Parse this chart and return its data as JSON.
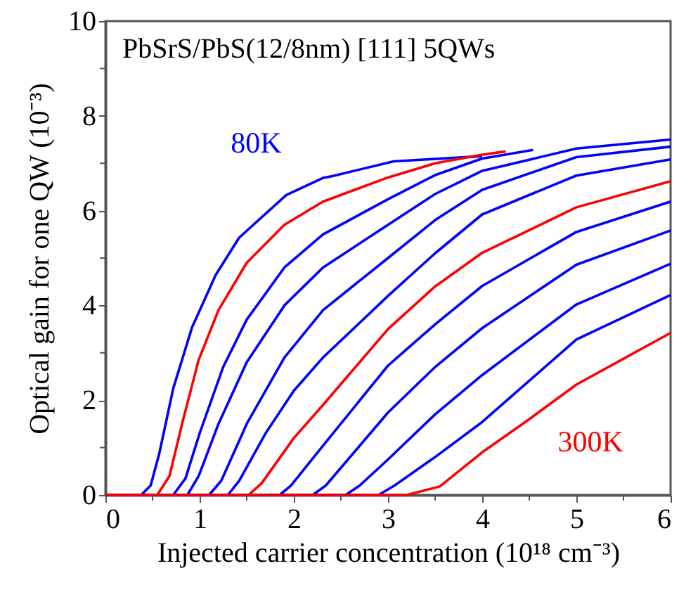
{
  "chart_data": {
    "type": "line",
    "title": "PbSrS/PbS(12/8nm) [111] 5QWs",
    "xlabel": "Injected carrier concentration (10¹⁸ cm⁻³)",
    "ylabel": "Optical gain for one QW (10⁻³)",
    "xlim": [
      0,
      6
    ],
    "ylim": [
      0,
      10
    ],
    "xticks": [
      0,
      {
        "value": 0.5,
        "label": null
      },
      1,
      {
        "value": 1.5,
        "label": null
      },
      2,
      {
        "value": 2.5,
        "label": null
      },
      3,
      {
        "value": 3.5,
        "label": null
      },
      4,
      {
        "value": 4.5,
        "label": null
      },
      5,
      {
        "value": 5.5,
        "label": null
      },
      6
    ],
    "yticks": [
      0,
      {
        "value": 1,
        "label": null
      },
      2,
      {
        "value": 3,
        "label": null
      },
      4,
      {
        "value": 5,
        "label": null
      },
      6,
      {
        "value": 7,
        "label": null
      },
      8,
      {
        "value": 9,
        "label": null
      },
      10
    ],
    "grid": false,
    "legend": false,
    "line_style": "solid",
    "series": [
      {
        "name": "80K",
        "color": "#0000ff",
        "x": [
          0,
          0.38,
          0.48,
          0.57,
          0.72,
          0.92,
          1.17,
          1.42,
          1.92,
          2.31,
          2.41,
          3.06,
          4.0
        ],
        "values": [
          0,
          0,
          0.2,
          0.86,
          2.25,
          3.54,
          4.64,
          5.43,
          6.33,
          6.69,
          6.73,
          7.04,
          7.15
        ]
      },
      {
        "color": "#ff0000",
        "x": [
          0,
          0.55,
          0.68,
          0.82,
          0.99,
          1.2,
          1.5,
          1.9,
          2.31,
          3.0,
          3.5,
          4.0,
          4.25
        ],
        "values": [
          0,
          0,
          0.4,
          1.55,
          2.85,
          3.9,
          4.9,
          5.7,
          6.19,
          6.7,
          7.0,
          7.18,
          7.25
        ]
      },
      {
        "color": "#0000ff",
        "x": [
          0,
          0.72,
          0.85,
          1.0,
          1.25,
          1.5,
          1.9,
          2.31,
          3.0,
          3.5,
          4.0,
          4.54
        ],
        "values": [
          0,
          0,
          0.35,
          1.3,
          2.7,
          3.7,
          4.8,
          5.5,
          6.24,
          6.75,
          7.1,
          7.28
        ]
      },
      {
        "color": "#0000ff",
        "x": [
          0,
          0.87,
          0.99,
          1.2,
          1.5,
          1.9,
          2.31,
          3.0,
          3.5,
          4.0,
          5.0,
          6.0
        ],
        "values": [
          0,
          0,
          0.4,
          1.5,
          2.8,
          4.0,
          4.8,
          5.7,
          6.35,
          6.84,
          7.31,
          7.5
        ]
      },
      {
        "color": "#0000ff",
        "x": [
          0,
          1.1,
          1.23,
          1.5,
          1.9,
          2.31,
          3.0,
          3.5,
          4.0,
          5.0,
          6.0
        ],
        "values": [
          0,
          0,
          0.3,
          1.5,
          2.9,
          3.9,
          5.0,
          5.8,
          6.44,
          7.13,
          7.35
        ]
      },
      {
        "color": "#0000ff",
        "x": [
          0,
          1.3,
          1.42,
          1.7,
          2.0,
          2.31,
          3.0,
          3.5,
          4.0,
          5.0,
          6.0
        ],
        "values": [
          0,
          0,
          0.3,
          1.3,
          2.2,
          2.9,
          4.2,
          5.1,
          5.92,
          6.74,
          7.08
        ]
      },
      {
        "color": "#ff0000",
        "x": [
          0,
          1.52,
          1.66,
          2.0,
          2.31,
          3.0,
          3.5,
          4.0,
          5.0,
          6.0
        ],
        "values": [
          0,
          0,
          0.25,
          1.2,
          1.9,
          3.5,
          4.4,
          5.11,
          6.07,
          6.62
        ]
      },
      {
        "color": "#0000ff",
        "x": [
          0,
          1.85,
          1.97,
          2.31,
          3.0,
          3.5,
          4.0,
          5.0,
          6.0
        ],
        "values": [
          0,
          0,
          0.2,
          1.04,
          2.73,
          3.6,
          4.41,
          5.55,
          6.19
        ]
      },
      {
        "color": "#0000ff",
        "x": [
          0,
          2.2,
          2.34,
          3.0,
          3.5,
          4.0,
          5.0,
          6.0
        ],
        "values": [
          0,
          0,
          0.2,
          1.74,
          2.7,
          3.52,
          4.86,
          5.58
        ]
      },
      {
        "color": "#0000ff",
        "x": [
          0,
          2.55,
          2.7,
          3.0,
          3.5,
          4.0,
          5.0,
          6.0
        ],
        "values": [
          0,
          0,
          0.2,
          0.75,
          1.7,
          2.53,
          4.02,
          4.88
        ]
      },
      {
        "color": "#0000ff",
        "x": [
          0,
          2.9,
          3.07,
          3.5,
          4.0,
          5.0,
          6.0
        ],
        "values": [
          0,
          0,
          0.2,
          0.8,
          1.54,
          3.28,
          4.22
        ]
      },
      {
        "name": "300K",
        "color": "#ff0000",
        "x": [
          0,
          3.2,
          3.55,
          4.0,
          4.5,
          5.0,
          6.0
        ],
        "values": [
          0,
          0,
          0.18,
          0.9,
          1.6,
          2.33,
          3.42
        ]
      }
    ]
  }
}
